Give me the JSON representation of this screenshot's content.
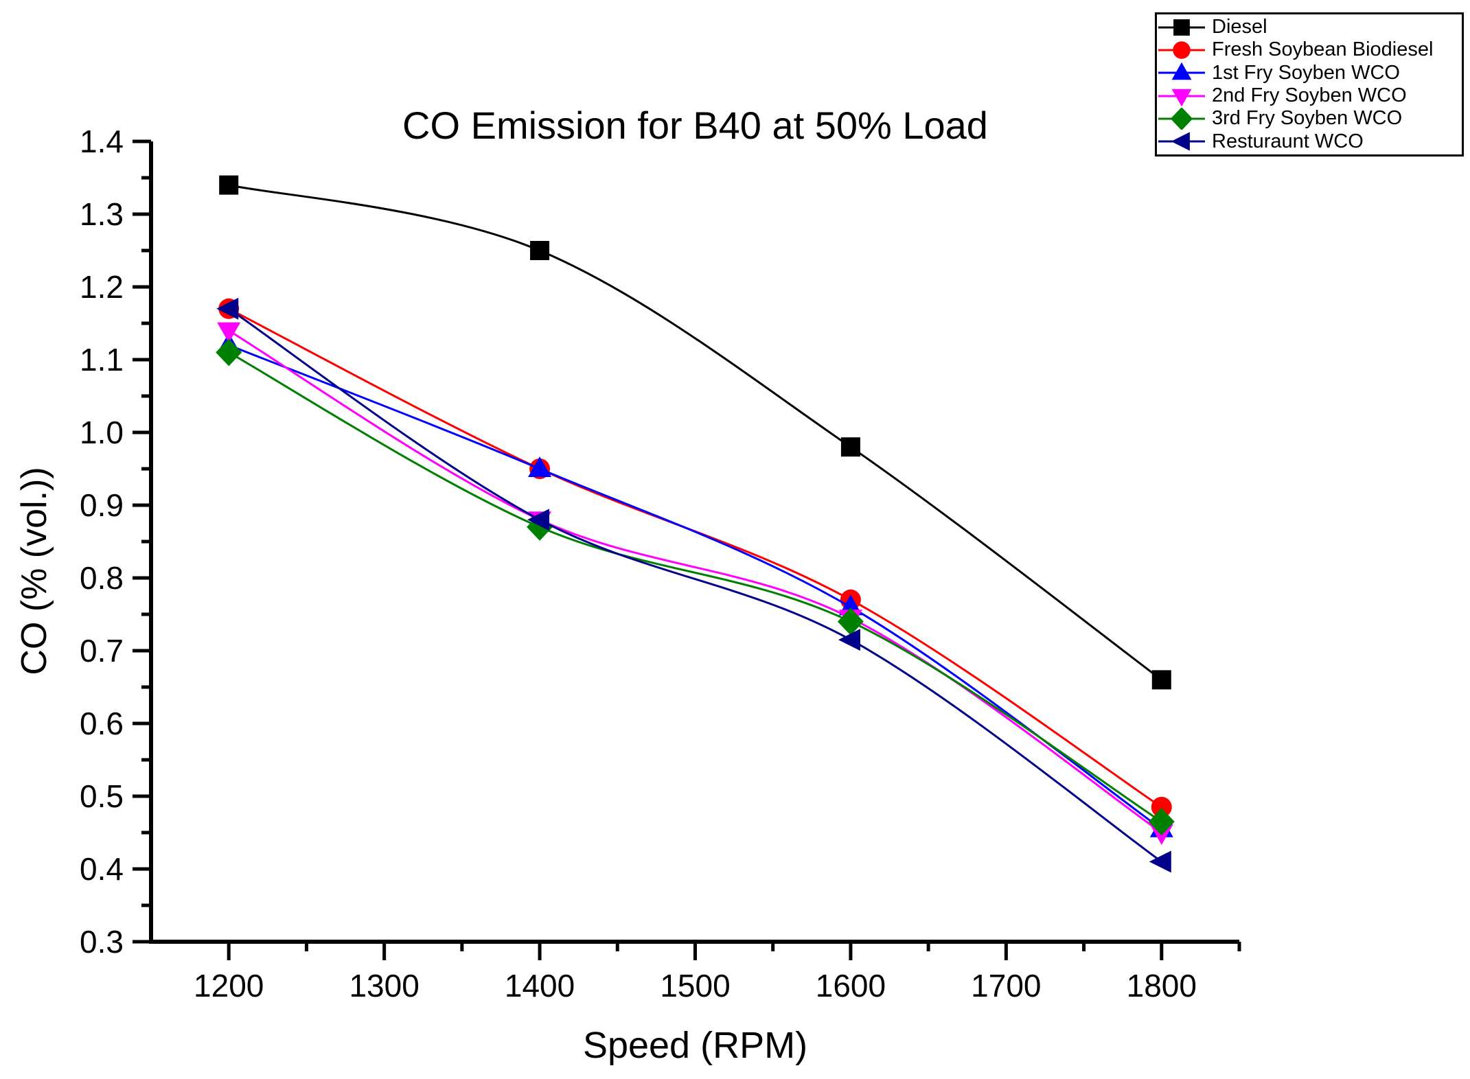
{
  "chart_data": {
    "type": "line",
    "title": "CO Emission for B40 at 50% Load",
    "xlabel": "Speed (RPM)",
    "ylabel": "CO (% (vol.))",
    "x": [
      1200,
      1400,
      1600,
      1800
    ],
    "xlim": [
      1150,
      1850
    ],
    "ylim": [
      0.3,
      1.4
    ],
    "x_major_ticks": [
      1200,
      1300,
      1400,
      1500,
      1600,
      1700,
      1800
    ],
    "x_minor_ticks": [
      1250,
      1350,
      1450,
      1550,
      1650,
      1750,
      1850
    ],
    "y_major_ticks": [
      0.3,
      0.4,
      0.5,
      0.6,
      0.7,
      0.8,
      0.9,
      1.0,
      1.1,
      1.2,
      1.3,
      1.4
    ],
    "y_minor_ticks": [
      0.35,
      0.45,
      0.55,
      0.65,
      0.75,
      0.85,
      0.95,
      1.05,
      1.15,
      1.25,
      1.35
    ],
    "grid": false,
    "legend_position": "top-right",
    "axis_color": "#000000",
    "series": [
      {
        "name": "Diesel",
        "color": "#000000",
        "marker": "square",
        "values": [
          1.34,
          1.25,
          0.98,
          0.66
        ]
      },
      {
        "name": "Fresh Soybean Biodiesel",
        "color": "#FF0000",
        "marker": "circle",
        "values": [
          1.17,
          0.95,
          0.77,
          0.485
        ]
      },
      {
        "name": "1st Fry Soyben WCO",
        "color": "#0000FF",
        "marker": "triangle-up",
        "values": [
          1.12,
          0.95,
          0.76,
          0.455
        ]
      },
      {
        "name": "2nd Fry Soyben WCO",
        "color": "#FF00FF",
        "marker": "triangle-down",
        "values": [
          1.14,
          0.88,
          0.745,
          0.45
        ]
      },
      {
        "name": "3rd Fry Soyben WCO",
        "color": "#008000",
        "marker": "diamond",
        "values": [
          1.11,
          0.87,
          0.74,
          0.465
        ]
      },
      {
        "name": "Resturaunt WCO",
        "color": "#00008B",
        "marker": "triangle-left",
        "values": [
          1.17,
          0.88,
          0.715,
          0.41
        ]
      }
    ]
  }
}
